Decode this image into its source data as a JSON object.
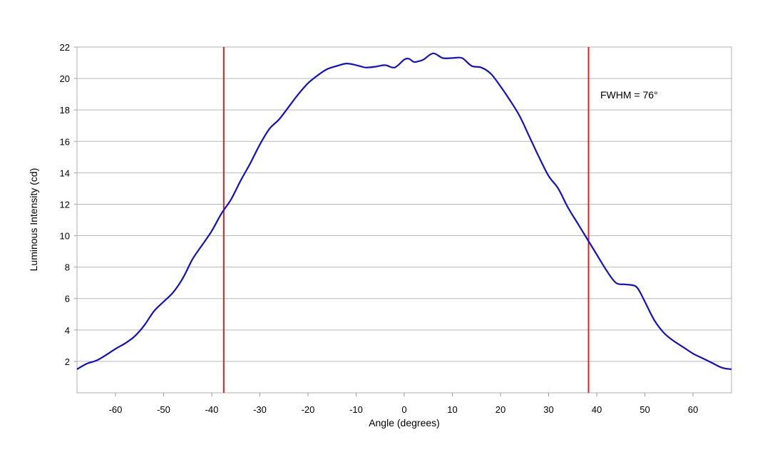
{
  "chart_data": {
    "type": "line",
    "title": "",
    "xlabel": "Angle (degrees)",
    "ylabel": "Luminous Intensity (cd)",
    "xlim": [
      -68,
      68
    ],
    "ylim": [
      0,
      22
    ],
    "xticks": [
      -60,
      -50,
      -40,
      -30,
      -20,
      -10,
      0,
      10,
      20,
      30,
      40,
      50,
      60
    ],
    "yticks": [
      2,
      4,
      6,
      8,
      10,
      12,
      14,
      16,
      18,
      20,
      22
    ],
    "grid": true,
    "series_color": "#1010cc",
    "marker_color": "#dd2222",
    "series": [
      {
        "x": [
          -68,
          -66,
          -64,
          -62,
          -60,
          -58,
          -56,
          -54,
          -52,
          -50,
          -48,
          -46,
          -44,
          -42,
          -40,
          -38,
          -36,
          -34,
          -32,
          -30,
          -28,
          -26,
          -24,
          -22,
          -20,
          -18,
          -16,
          -14,
          -12,
          -10,
          -8,
          -6,
          -4,
          -2,
          0,
          1,
          2,
          3,
          4,
          6,
          8,
          10,
          12,
          14,
          16,
          18,
          20,
          22,
          24,
          26,
          28,
          30,
          32,
          34,
          36,
          38,
          40,
          42,
          44,
          46,
          48,
          49,
          50,
          52,
          54,
          56,
          58,
          60,
          62,
          64,
          66,
          68
        ],
        "y": [
          1.5,
          1.85,
          2.05,
          2.4,
          2.8,
          3.15,
          3.6,
          4.3,
          5.2,
          5.8,
          6.4,
          7.3,
          8.5,
          9.4,
          10.3,
          11.4,
          12.3,
          13.5,
          14.6,
          15.8,
          16.8,
          17.4,
          18.2,
          19.0,
          19.7,
          20.2,
          20.6,
          20.8,
          20.95,
          20.85,
          20.7,
          20.75,
          20.85,
          20.7,
          21.2,
          21.25,
          21.05,
          21.1,
          21.2,
          21.6,
          21.3,
          21.3,
          21.3,
          20.8,
          20.7,
          20.3,
          19.5,
          18.6,
          17.6,
          16.3,
          15.0,
          13.8,
          13.0,
          11.8,
          10.8,
          9.8,
          8.8,
          7.8,
          7.0,
          6.9,
          6.8,
          6.4,
          5.8,
          4.6,
          3.8,
          3.3,
          2.9,
          2.5,
          2.2,
          1.9,
          1.6,
          1.5
        ]
      }
    ],
    "reference_lines_x": [
      -37.5,
      38.3
    ],
    "annotation": "FWHM = 76°"
  }
}
